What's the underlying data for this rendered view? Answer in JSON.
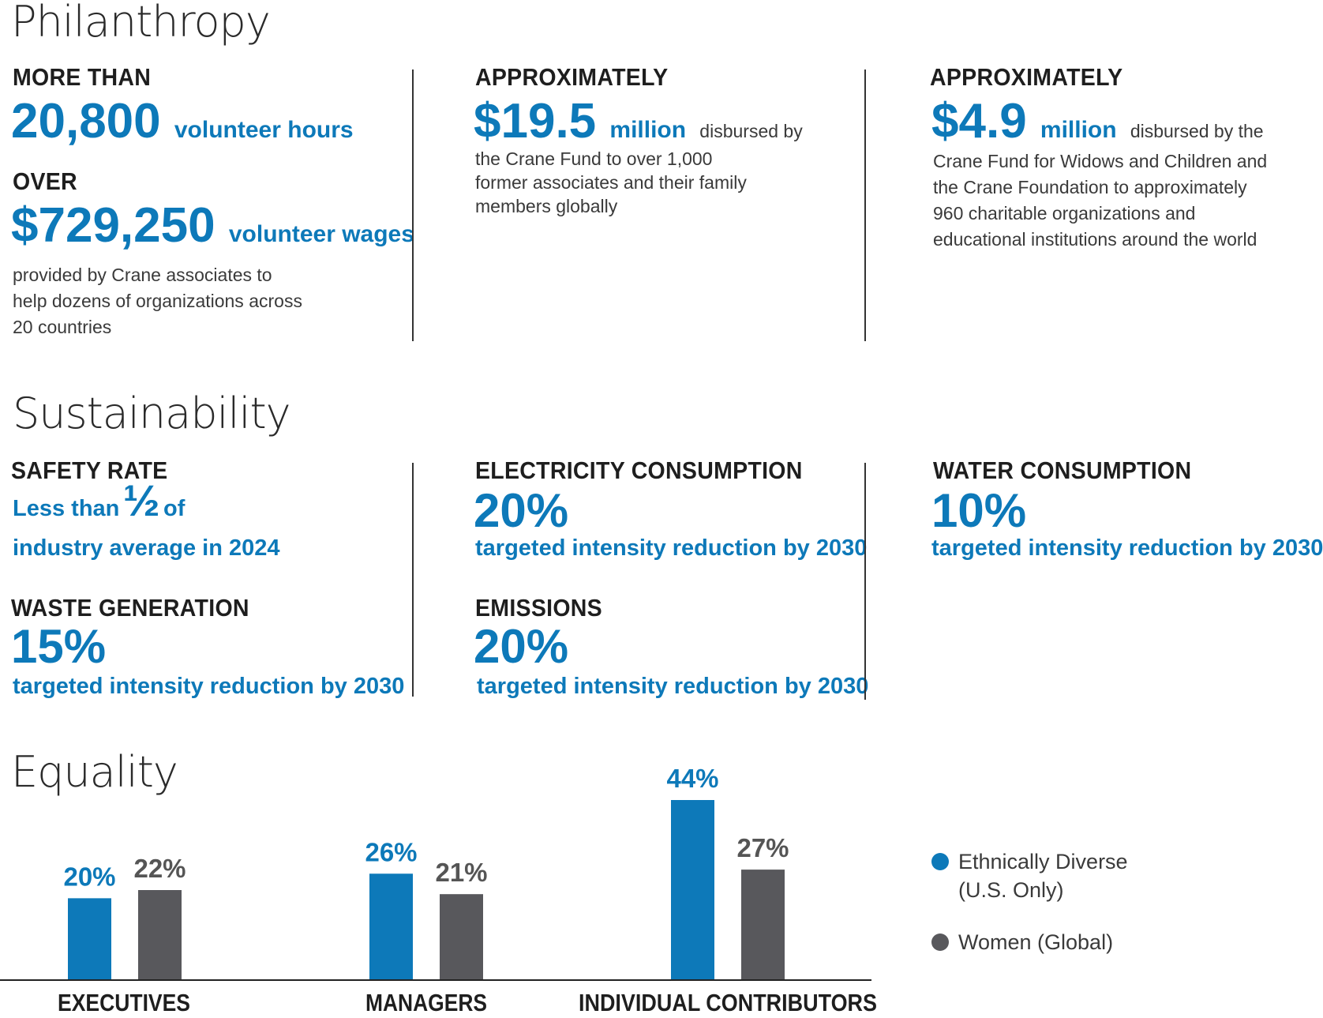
{
  "philanthropy": {
    "title": "Philanthropy",
    "col1": {
      "label1": "MORE THAN",
      "value1": "20,800",
      "unit1": "volunteer hours",
      "label2": "OVER",
      "value2": "$729,250",
      "unit2": "volunteer wages",
      "desc": [
        "provided by Crane associates to",
        "help dozens of organizations across",
        "20 countries"
      ]
    },
    "col2": {
      "label": "APPROXIMATELY",
      "value": "$19.5",
      "unit": "million",
      "desc_inline": "disbursed by",
      "desc": [
        "the Crane Fund to over 1,000",
        "former associates and their family",
        "members globally"
      ]
    },
    "col3": {
      "label": "APPROXIMATELY",
      "value": "$4.9",
      "unit": "million",
      "desc_inline": "disbursed by the",
      "desc": [
        "Crane Fund for Widows and Children and",
        "the Crane Foundation to approximately",
        "960 charitable organizations and",
        "educational institutions around the world"
      ]
    }
  },
  "sustainability": {
    "title": "Sustainability",
    "safety": {
      "label": "SAFETY RATE",
      "line1a": "Less than",
      "fraction": "½",
      "line1b": "of",
      "line2": "industry average in 2024"
    },
    "waste": {
      "label": "WASTE GENERATION",
      "value": "15%",
      "sub": "targeted intensity reduction by 2030"
    },
    "electricity": {
      "label": "ELECTRICITY CONSUMPTION",
      "value": "20%",
      "sub": "targeted intensity reduction by 2030"
    },
    "emissions": {
      "label": "EMISSIONS",
      "value": "20%",
      "sub": "targeted intensity reduction by 2030"
    },
    "water": {
      "label": "WATER CONSUMPTION",
      "value": "10%",
      "sub": "targeted intensity reduction by 2030"
    }
  },
  "equality": {
    "title": "Equality",
    "legend": {
      "ethnic": [
        "Ethnically Diverse",
        "(U.S. Only)"
      ],
      "women": "Women (Global)"
    }
  },
  "colors": {
    "blue": "#0d79b9",
    "gray": "#58585c",
    "text": "#222222"
  },
  "chart_data": {
    "type": "bar",
    "title": "Equality",
    "categories": [
      "EXECUTIVES",
      "MANAGERS",
      "INDIVIDUAL CONTRIBUTORS"
    ],
    "series": [
      {
        "name": "Ethnically Diverse (U.S. Only)",
        "values": [
          20,
          26,
          44
        ],
        "labels": [
          "20%",
          "26%",
          "44%"
        ],
        "color": "#0d79b9"
      },
      {
        "name": "Women (Global)",
        "values": [
          22,
          21,
          27
        ],
        "labels": [
          "22%",
          "21%",
          "27%"
        ],
        "color": "#58585c"
      }
    ],
    "ylim": [
      0,
      50
    ],
    "grid": false,
    "legend": "right"
  }
}
